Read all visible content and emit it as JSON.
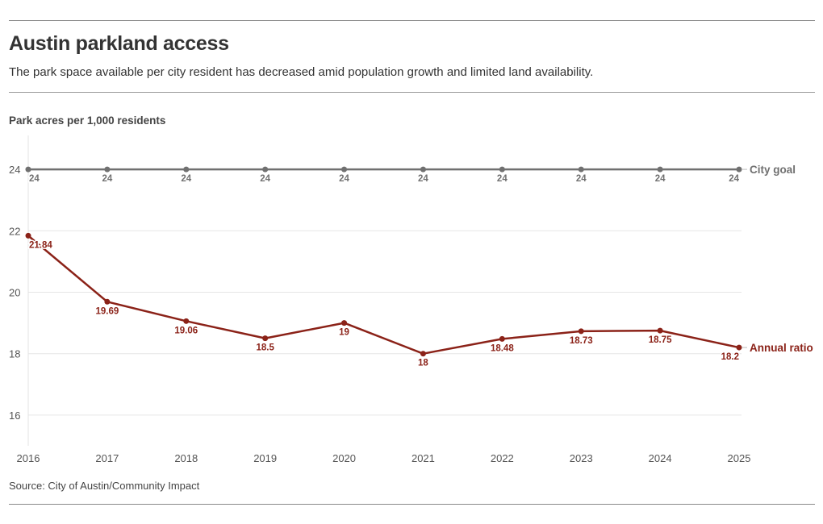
{
  "header": {
    "title": "Austin parkland access",
    "subtitle": "The park space available per city resident has decreased amid population growth and limited land availability."
  },
  "footer": {
    "source": "Source: City of Austin/Community Impact"
  },
  "chart_data": {
    "type": "line",
    "title": "Austin parkland access",
    "ylabel": "Park acres per 1,000 residents",
    "xlabel": "",
    "x": [
      2016,
      2017,
      2018,
      2019,
      2020,
      2021,
      2022,
      2023,
      2024,
      2025
    ],
    "ylim": [
      15,
      25
    ],
    "yticks": [
      16,
      18,
      20,
      22,
      24
    ],
    "grid": true,
    "legend": "inline-right",
    "series": [
      {
        "name": "City goal",
        "color": "#707070",
        "values": [
          24,
          24,
          24,
          24,
          24,
          24,
          24,
          24,
          24,
          24
        ],
        "labels": [
          "24",
          "24",
          "24",
          "24",
          "24",
          "24",
          "24",
          "24",
          "24",
          "24"
        ]
      },
      {
        "name": "Annual ratio",
        "color": "#8b2218",
        "values": [
          21.84,
          19.69,
          19.06,
          18.5,
          19,
          18,
          18.48,
          18.73,
          18.75,
          18.2
        ],
        "labels": [
          "21.84",
          "19.69",
          "19.06",
          "18.5",
          "19",
          "18",
          "18.48",
          "18.73",
          "18.75",
          "18.2"
        ]
      }
    ]
  }
}
